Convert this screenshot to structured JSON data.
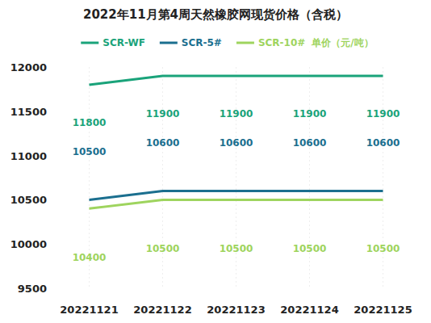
{
  "chart_data": {
    "type": "line",
    "title": "2022年11月第4周天然橡胶网现货价格（含税）",
    "y_label": "单价（元/吨）",
    "categories": [
      "20221121",
      "20221122",
      "20221123",
      "20221124",
      "20221125"
    ],
    "series": [
      {
        "name": "SCR-WF",
        "color": "#1aa37a",
        "values": [
          11800,
          11900,
          11900,
          11900,
          11900
        ]
      },
      {
        "name": "SCR-5#",
        "color": "#1b6f8f",
        "values": [
          10500,
          10600,
          10600,
          10600,
          10600
        ]
      },
      {
        "name": "SCR-10#",
        "color": "#9ed45e",
        "values": [
          10400,
          10500,
          10500,
          10500,
          10500
        ]
      }
    ],
    "ylim": [
      9500,
      12000
    ],
    "yticks": [
      9500,
      10000,
      10500,
      11000,
      11500,
      12000
    ],
    "grid": false,
    "legend": "top",
    "data_labels": true
  }
}
